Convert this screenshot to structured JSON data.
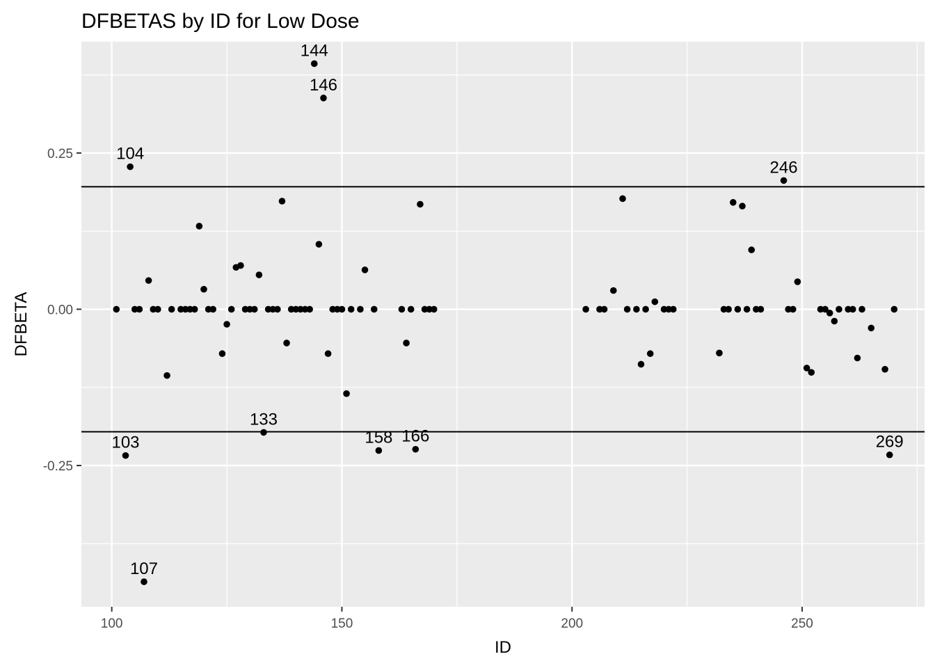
{
  "chart_data": {
    "type": "scatter",
    "title": "DFBETAS by ID for Low Dose",
    "xlabel": "ID",
    "ylabel": "DFBETA",
    "xlim": [
      93.4,
      276.6
    ],
    "ylim": [
      -0.476,
      0.428
    ],
    "x_ticks": [
      100,
      150,
      200,
      250
    ],
    "x_tick_labels": [
      "100",
      "150",
      "200",
      "250"
    ],
    "y_ticks": [
      -0.25,
      0.0,
      0.25
    ],
    "y_tick_labels": [
      "-0.25",
      "0.00",
      "0.25"
    ],
    "grid": true,
    "panel_background": "#ebebeb",
    "grid_color": "#ffffff",
    "point_color": "#000000",
    "reference_lines": [
      0.196,
      -0.196
    ],
    "points": [
      {
        "x": 101,
        "y": 0.0
      },
      {
        "x": 103,
        "y": -0.234,
        "label": "103"
      },
      {
        "x": 104,
        "y": 0.228,
        "label": "104"
      },
      {
        "x": 105,
        "y": 0.0
      },
      {
        "x": 106,
        "y": 0.0
      },
      {
        "x": 107,
        "y": -0.436,
        "label": "107"
      },
      {
        "x": 108,
        "y": 0.046
      },
      {
        "x": 109,
        "y": 0.0
      },
      {
        "x": 110,
        "y": 0.0
      },
      {
        "x": 112,
        "y": -0.106
      },
      {
        "x": 113,
        "y": 0.0
      },
      {
        "x": 115,
        "y": 0.0
      },
      {
        "x": 116,
        "y": 0.0
      },
      {
        "x": 117,
        "y": 0.0
      },
      {
        "x": 118,
        "y": 0.0
      },
      {
        "x": 119,
        "y": 0.133
      },
      {
        "x": 120,
        "y": 0.032
      },
      {
        "x": 121,
        "y": 0.0
      },
      {
        "x": 122,
        "y": 0.0
      },
      {
        "x": 124,
        "y": -0.071
      },
      {
        "x": 125,
        "y": -0.024
      },
      {
        "x": 126,
        "y": 0.0
      },
      {
        "x": 127,
        "y": 0.067
      },
      {
        "x": 128,
        "y": 0.07
      },
      {
        "x": 129,
        "y": 0.0
      },
      {
        "x": 130,
        "y": 0.0
      },
      {
        "x": 131,
        "y": 0.0
      },
      {
        "x": 132,
        "y": 0.055
      },
      {
        "x": 133,
        "y": -0.197,
        "label": "133"
      },
      {
        "x": 134,
        "y": 0.0
      },
      {
        "x": 135,
        "y": 0.0
      },
      {
        "x": 136,
        "y": 0.0
      },
      {
        "x": 137,
        "y": 0.173
      },
      {
        "x": 138,
        "y": -0.054
      },
      {
        "x": 139,
        "y": 0.0
      },
      {
        "x": 140,
        "y": 0.0
      },
      {
        "x": 141,
        "y": 0.0
      },
      {
        "x": 142,
        "y": 0.0
      },
      {
        "x": 143,
        "y": 0.0
      },
      {
        "x": 144,
        "y": 0.393,
        "label": "144"
      },
      {
        "x": 145,
        "y": 0.104
      },
      {
        "x": 146,
        "y": 0.338,
        "label": "146"
      },
      {
        "x": 147,
        "y": -0.071
      },
      {
        "x": 148,
        "y": 0.0
      },
      {
        "x": 149,
        "y": 0.0
      },
      {
        "x": 150,
        "y": 0.0
      },
      {
        "x": 151,
        "y": -0.135
      },
      {
        "x": 152,
        "y": 0.0
      },
      {
        "x": 154,
        "y": 0.0
      },
      {
        "x": 155,
        "y": 0.063
      },
      {
        "x": 157,
        "y": 0.0
      },
      {
        "x": 158,
        "y": -0.226,
        "label": "158"
      },
      {
        "x": 163,
        "y": 0.0
      },
      {
        "x": 164,
        "y": -0.054
      },
      {
        "x": 165,
        "y": 0.0
      },
      {
        "x": 166,
        "y": -0.224,
        "label": "166"
      },
      {
        "x": 167,
        "y": 0.168
      },
      {
        "x": 168,
        "y": 0.0
      },
      {
        "x": 169,
        "y": 0.0
      },
      {
        "x": 170,
        "y": 0.0
      },
      {
        "x": 203,
        "y": 0.0
      },
      {
        "x": 206,
        "y": 0.0
      },
      {
        "x": 207,
        "y": 0.0
      },
      {
        "x": 209,
        "y": 0.03
      },
      {
        "x": 211,
        "y": 0.177
      },
      {
        "x": 212,
        "y": 0.0
      },
      {
        "x": 214,
        "y": 0.0
      },
      {
        "x": 215,
        "y": -0.088
      },
      {
        "x": 216,
        "y": 0.0
      },
      {
        "x": 217,
        "y": -0.071
      },
      {
        "x": 218,
        "y": 0.012
      },
      {
        "x": 220,
        "y": 0.0
      },
      {
        "x": 221,
        "y": 0.0
      },
      {
        "x": 222,
        "y": 0.0
      },
      {
        "x": 232,
        "y": -0.07
      },
      {
        "x": 233,
        "y": 0.0
      },
      {
        "x": 234,
        "y": 0.0
      },
      {
        "x": 235,
        "y": 0.171
      },
      {
        "x": 236,
        "y": 0.0
      },
      {
        "x": 237,
        "y": 0.165
      },
      {
        "x": 238,
        "y": 0.0
      },
      {
        "x": 239,
        "y": 0.095
      },
      {
        "x": 240,
        "y": 0.0
      },
      {
        "x": 241,
        "y": 0.0
      },
      {
        "x": 246,
        "y": 0.206,
        "label": "246"
      },
      {
        "x": 247,
        "y": 0.0
      },
      {
        "x": 248,
        "y": 0.0
      },
      {
        "x": 249,
        "y": 0.044
      },
      {
        "x": 251,
        "y": -0.094
      },
      {
        "x": 252,
        "y": -0.101
      },
      {
        "x": 254,
        "y": 0.0
      },
      {
        "x": 255,
        "y": 0.0
      },
      {
        "x": 256,
        "y": -0.006
      },
      {
        "x": 257,
        "y": -0.019
      },
      {
        "x": 258,
        "y": 0.0
      },
      {
        "x": 260,
        "y": 0.0
      },
      {
        "x": 261,
        "y": 0.0
      },
      {
        "x": 262,
        "y": -0.078
      },
      {
        "x": 263,
        "y": 0.0
      },
      {
        "x": 265,
        "y": -0.03
      },
      {
        "x": 268,
        "y": -0.096
      },
      {
        "x": 269,
        "y": -0.233,
        "label": "269"
      },
      {
        "x": 270,
        "y": 0.0
      }
    ]
  }
}
